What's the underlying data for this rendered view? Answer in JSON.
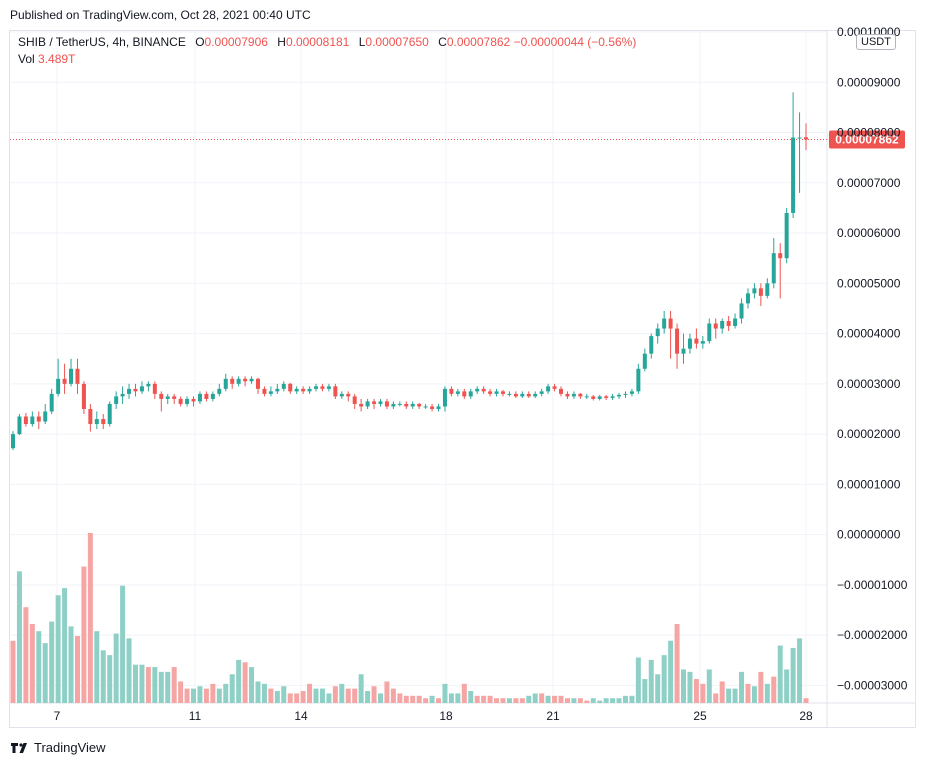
{
  "header": {
    "published": "Published on TradingView.com, Oct 28, 2021 00:40 UTC"
  },
  "legend": {
    "symbol": "SHIB / TetherUS, 4h, BINANCE",
    "o_label": "O",
    "o_value": "0.00007906",
    "h_label": "H",
    "h_value": "0.00008181",
    "l_label": "L",
    "l_value": "0.00007650",
    "c_label": "C",
    "c_value": "0.00007862",
    "change": "−0.00000044 (−0.56%)",
    "vol_label": "Vol",
    "vol_value": "3.489T"
  },
  "currency_badge": "USDT",
  "footer": {
    "brand": "TradingView"
  },
  "colors": {
    "up": "#26a69a",
    "down": "#ef5350",
    "up_vol": "#8fd0c6",
    "down_vol": "#f5a5a3",
    "grid": "#f0f3fa",
    "last_price": "#ef5350"
  },
  "chart_data": {
    "type": "candlestick",
    "timeframe": "4h",
    "x_ticks": [
      "7",
      "11",
      "14",
      "18",
      "21",
      "25",
      "28"
    ],
    "y_ticks": [
      "0.00010000",
      "0.00009000",
      "0.00008000",
      "0.00007000",
      "0.00006000",
      "0.00005000",
      "0.00004000",
      "0.00003000",
      "0.00002000",
      "0.00001000",
      "0.00000000",
      "−0.00001000",
      "−0.00002000",
      "−0.00003000"
    ],
    "ylim": [
      -3.35e-05,
      0.0001002
    ],
    "last_price": "0.00007862",
    "grid": true,
    "candles": [
      [
        1.72,
        2.0,
        1.68,
        2.06
      ],
      [
        2.0,
        2.35,
        1.98,
        2.4
      ],
      [
        2.35,
        2.2,
        2.15,
        2.42
      ],
      [
        2.2,
        2.35,
        2.15,
        2.45
      ],
      [
        2.35,
        2.25,
        2.1,
        2.45
      ],
      [
        2.25,
        2.45,
        2.2,
        2.6
      ],
      [
        2.45,
        2.8,
        2.4,
        2.9
      ],
      [
        2.8,
        3.1,
        2.75,
        3.5
      ],
      [
        3.1,
        3.0,
        2.8,
        3.4
      ],
      [
        3.0,
        3.3,
        2.95,
        3.5
      ],
      [
        3.3,
        3.0,
        2.8,
        3.5
      ],
      [
        3.0,
        2.5,
        2.4,
        3.05
      ],
      [
        2.5,
        2.2,
        2.05,
        2.6
      ],
      [
        2.2,
        2.3,
        2.1,
        2.45
      ],
      [
        2.3,
        2.2,
        2.1,
        2.4
      ],
      [
        2.2,
        2.6,
        2.15,
        2.65
      ],
      [
        2.6,
        2.75,
        2.5,
        2.85
      ],
      [
        2.75,
        2.8,
        2.6,
        2.95
      ],
      [
        2.8,
        2.9,
        2.7,
        3.0
      ],
      [
        2.9,
        2.85,
        2.75,
        3.0
      ],
      [
        2.85,
        2.95,
        2.8,
        3.05
      ],
      [
        2.95,
        3.0,
        2.85,
        3.05
      ],
      [
        3.0,
        2.8,
        2.7,
        3.05
      ],
      [
        2.8,
        2.7,
        2.45,
        2.85
      ],
      [
        2.7,
        2.75,
        2.6,
        2.8
      ],
      [
        2.75,
        2.7,
        2.6,
        2.8
      ],
      [
        2.7,
        2.6,
        2.55,
        2.75
      ],
      [
        2.6,
        2.7,
        2.55,
        2.75
      ],
      [
        2.7,
        2.65,
        2.55,
        2.75
      ],
      [
        2.65,
        2.8,
        2.6,
        2.85
      ],
      [
        2.8,
        2.7,
        2.65,
        2.85
      ],
      [
        2.7,
        2.8,
        2.65,
        2.85
      ],
      [
        2.8,
        2.9,
        2.75,
        3.0
      ],
      [
        2.9,
        3.1,
        2.85,
        3.2
      ],
      [
        3.1,
        3.0,
        2.9,
        3.15
      ],
      [
        3.0,
        3.1,
        2.95,
        3.15
      ],
      [
        3.1,
        3.05,
        2.95,
        3.15
      ],
      [
        3.05,
        3.1,
        3.0,
        3.15
      ],
      [
        3.1,
        2.9,
        2.8,
        3.12
      ],
      [
        2.9,
        2.8,
        2.75,
        2.95
      ],
      [
        2.8,
        2.85,
        2.75,
        2.95
      ],
      [
        2.85,
        2.9,
        2.8,
        3.0
      ],
      [
        2.9,
        3.0,
        2.85,
        3.05
      ],
      [
        3.0,
        2.85,
        2.8,
        3.02
      ],
      [
        2.85,
        2.9,
        2.8,
        2.95
      ],
      [
        2.9,
        2.85,
        2.8,
        2.95
      ],
      [
        2.85,
        2.9,
        2.8,
        2.95
      ],
      [
        2.9,
        2.95,
        2.85,
        3.0
      ],
      [
        2.95,
        2.9,
        2.85,
        3.0
      ],
      [
        2.9,
        2.95,
        2.85,
        3.0
      ],
      [
        2.95,
        2.75,
        2.7,
        3.0
      ],
      [
        2.75,
        2.8,
        2.7,
        2.85
      ],
      [
        2.8,
        2.75,
        2.65,
        2.85
      ],
      [
        2.75,
        2.6,
        2.5,
        2.8
      ],
      [
        2.6,
        2.55,
        2.45,
        2.7
      ],
      [
        2.55,
        2.65,
        2.5,
        2.7
      ],
      [
        2.65,
        2.6,
        2.5,
        2.7
      ],
      [
        2.6,
        2.65,
        2.55,
        2.7
      ],
      [
        2.65,
        2.55,
        2.5,
        2.7
      ],
      [
        2.55,
        2.6,
        2.5,
        2.65
      ],
      [
        2.6,
        2.6,
        2.55,
        2.65
      ],
      [
        2.6,
        2.55,
        2.5,
        2.65
      ],
      [
        2.55,
        2.6,
        2.5,
        2.65
      ],
      [
        2.6,
        2.55,
        2.5,
        2.62
      ],
      [
        2.55,
        2.55,
        2.5,
        2.6
      ],
      [
        2.55,
        2.5,
        2.45,
        2.6
      ],
      [
        2.5,
        2.55,
        2.45,
        2.6
      ],
      [
        2.55,
        2.9,
        2.45,
        2.95
      ],
      [
        2.9,
        2.8,
        2.75,
        2.95
      ],
      [
        2.8,
        2.85,
        2.75,
        2.9
      ],
      [
        2.85,
        2.75,
        2.7,
        2.9
      ],
      [
        2.75,
        2.85,
        2.7,
        2.9
      ],
      [
        2.85,
        2.9,
        2.8,
        2.95
      ],
      [
        2.9,
        2.85,
        2.8,
        2.95
      ],
      [
        2.85,
        2.8,
        2.75,
        2.9
      ],
      [
        2.8,
        2.85,
        2.75,
        2.9
      ],
      [
        2.85,
        2.8,
        2.75,
        2.88
      ],
      [
        2.8,
        2.8,
        2.75,
        2.85
      ],
      [
        2.8,
        2.75,
        2.72,
        2.85
      ],
      [
        2.75,
        2.8,
        2.72,
        2.85
      ],
      [
        2.8,
        2.75,
        2.72,
        2.85
      ],
      [
        2.75,
        2.8,
        2.72,
        2.85
      ],
      [
        2.8,
        2.85,
        2.75,
        2.9
      ],
      [
        2.85,
        2.95,
        2.8,
        3.0
      ],
      [
        2.95,
        2.9,
        2.85,
        3.0
      ],
      [
        2.9,
        2.8,
        2.75,
        2.95
      ],
      [
        2.8,
        2.75,
        2.7,
        2.85
      ],
      [
        2.75,
        2.8,
        2.7,
        2.85
      ],
      [
        2.8,
        2.75,
        2.7,
        2.82
      ],
      [
        2.75,
        2.75,
        2.7,
        2.8
      ],
      [
        2.75,
        2.7,
        2.67,
        2.78
      ],
      [
        2.7,
        2.75,
        2.67,
        2.78
      ],
      [
        2.75,
        2.72,
        2.68,
        2.78
      ],
      [
        2.72,
        2.75,
        2.68,
        2.8
      ],
      [
        2.75,
        2.78,
        2.7,
        2.82
      ],
      [
        2.78,
        2.8,
        2.72,
        2.85
      ],
      [
        2.8,
        2.85,
        2.75,
        2.9
      ],
      [
        2.85,
        3.3,
        2.8,
        3.4
      ],
      [
        3.3,
        3.6,
        3.25,
        3.7
      ],
      [
        3.6,
        3.95,
        3.5,
        4.0
      ],
      [
        3.95,
        4.1,
        3.8,
        4.2
      ],
      [
        4.1,
        4.3,
        4.0,
        4.45
      ],
      [
        4.3,
        4.1,
        3.5,
        4.45
      ],
      [
        4.1,
        3.6,
        3.3,
        4.2
      ],
      [
        3.6,
        3.7,
        3.4,
        4.0
      ],
      [
        3.7,
        3.9,
        3.6,
        4.0
      ],
      [
        3.9,
        3.8,
        3.7,
        4.1
      ],
      [
        3.8,
        3.85,
        3.7,
        3.95
      ],
      [
        3.85,
        4.2,
        3.8,
        4.3
      ],
      [
        4.2,
        4.1,
        3.9,
        4.3
      ],
      [
        4.1,
        4.25,
        4.0,
        4.3
      ],
      [
        4.25,
        4.15,
        4.05,
        4.35
      ],
      [
        4.15,
        4.3,
        4.1,
        4.4
      ],
      [
        4.3,
        4.6,
        4.2,
        4.7
      ],
      [
        4.6,
        4.8,
        4.5,
        4.9
      ],
      [
        4.8,
        4.9,
        4.7,
        5.0
      ],
      [
        4.9,
        4.75,
        4.55,
        5.0
      ],
      [
        4.75,
        5.0,
        4.7,
        5.1
      ],
      [
        5.0,
        5.6,
        4.9,
        5.9
      ],
      [
        5.6,
        5.5,
        4.7,
        5.8
      ],
      [
        5.5,
        6.4,
        5.4,
        6.5
      ],
      [
        6.4,
        7.9,
        6.3,
        8.8
      ],
      [
        7.9,
        7.9,
        6.8,
        8.4
      ],
      [
        7.906,
        7.862,
        7.65,
        8.181
      ]
    ],
    "volume": [
      [
        2.6,
        0
      ],
      [
        5.5,
        1
      ],
      [
        4.0,
        0
      ],
      [
        3.3,
        0
      ],
      [
        3.0,
        1
      ],
      [
        2.5,
        1
      ],
      [
        3.4,
        1
      ],
      [
        4.5,
        1
      ],
      [
        4.8,
        1
      ],
      [
        3.2,
        1
      ],
      [
        2.8,
        0
      ],
      [
        5.7,
        0
      ],
      [
        7.1,
        0
      ],
      [
        3.0,
        1
      ],
      [
        2.2,
        1
      ],
      [
        2.0,
        1
      ],
      [
        2.9,
        1
      ],
      [
        4.9,
        1
      ],
      [
        2.7,
        1
      ],
      [
        1.6,
        1
      ],
      [
        1.6,
        1
      ],
      [
        1.5,
        0
      ],
      [
        1.5,
        1
      ],
      [
        1.3,
        1
      ],
      [
        1.3,
        1
      ],
      [
        1.5,
        0
      ],
      [
        0.9,
        0
      ],
      [
        0.6,
        0
      ],
      [
        0.6,
        1
      ],
      [
        0.7,
        1
      ],
      [
        0.6,
        0
      ],
      [
        0.8,
        0
      ],
      [
        0.6,
        1
      ],
      [
        0.8,
        1
      ],
      [
        1.2,
        1
      ],
      [
        1.8,
        1
      ],
      [
        1.7,
        0
      ],
      [
        1.5,
        1
      ],
      [
        0.9,
        1
      ],
      [
        0.8,
        1
      ],
      [
        0.6,
        0
      ],
      [
        0.5,
        1
      ],
      [
        0.7,
        1
      ],
      [
        0.4,
        0
      ],
      [
        0.4,
        0
      ],
      [
        0.5,
        0
      ],
      [
        0.8,
        0
      ],
      [
        0.6,
        1
      ],
      [
        0.6,
        1
      ],
      [
        0.4,
        1
      ],
      [
        0.7,
        0
      ],
      [
        0.8,
        1
      ],
      [
        0.6,
        0
      ],
      [
        0.6,
        0
      ],
      [
        1.2,
        1
      ],
      [
        0.5,
        1
      ],
      [
        0.7,
        0
      ],
      [
        0.4,
        1
      ],
      [
        0.9,
        0
      ],
      [
        0.6,
        0
      ],
      [
        0.4,
        0
      ],
      [
        0.3,
        0
      ],
      [
        0.3,
        0
      ],
      [
        0.3,
        0
      ],
      [
        0.2,
        0
      ],
      [
        0.3,
        1
      ],
      [
        0.2,
        0
      ],
      [
        0.8,
        1
      ],
      [
        0.4,
        1
      ],
      [
        0.4,
        1
      ],
      [
        0.8,
        0
      ],
      [
        0.5,
        1
      ],
      [
        0.3,
        0
      ],
      [
        0.3,
        0
      ],
      [
        0.3,
        0
      ],
      [
        0.2,
        0
      ],
      [
        0.2,
        0
      ],
      [
        0.2,
        1
      ],
      [
        0.2,
        0
      ],
      [
        0.2,
        0
      ],
      [
        0.3,
        1
      ],
      [
        0.4,
        1
      ],
      [
        0.4,
        0
      ],
      [
        0.3,
        1
      ],
      [
        0.3,
        0
      ],
      [
        0.3,
        0
      ],
      [
        0.2,
        0
      ],
      [
        0.2,
        1
      ],
      [
        0.2,
        0
      ],
      [
        0.1,
        0
      ],
      [
        0.2,
        1
      ],
      [
        0.1,
        1
      ],
      [
        0.2,
        1
      ],
      [
        0.2,
        1
      ],
      [
        0.2,
        1
      ],
      [
        0.3,
        1
      ],
      [
        0.3,
        1
      ],
      [
        1.9,
        1
      ],
      [
        1.0,
        1
      ],
      [
        1.8,
        1
      ],
      [
        1.2,
        1
      ],
      [
        2.0,
        1
      ],
      [
        2.6,
        1
      ],
      [
        3.3,
        0
      ],
      [
        1.4,
        1
      ],
      [
        1.3,
        1
      ],
      [
        1.0,
        0
      ],
      [
        0.8,
        0
      ],
      [
        1.4,
        1
      ],
      [
        0.4,
        0
      ],
      [
        0.9,
        0
      ],
      [
        0.6,
        1
      ],
      [
        0.6,
        1
      ],
      [
        1.3,
        1
      ],
      [
        0.8,
        0
      ],
      [
        0.7,
        1
      ],
      [
        1.3,
        0
      ],
      [
        0.8,
        1
      ],
      [
        1.1,
        0
      ],
      [
        2.4,
        1
      ],
      [
        1.4,
        1
      ],
      [
        2.3,
        1
      ],
      [
        2.7,
        1
      ],
      [
        0.2,
        0
      ]
    ]
  }
}
